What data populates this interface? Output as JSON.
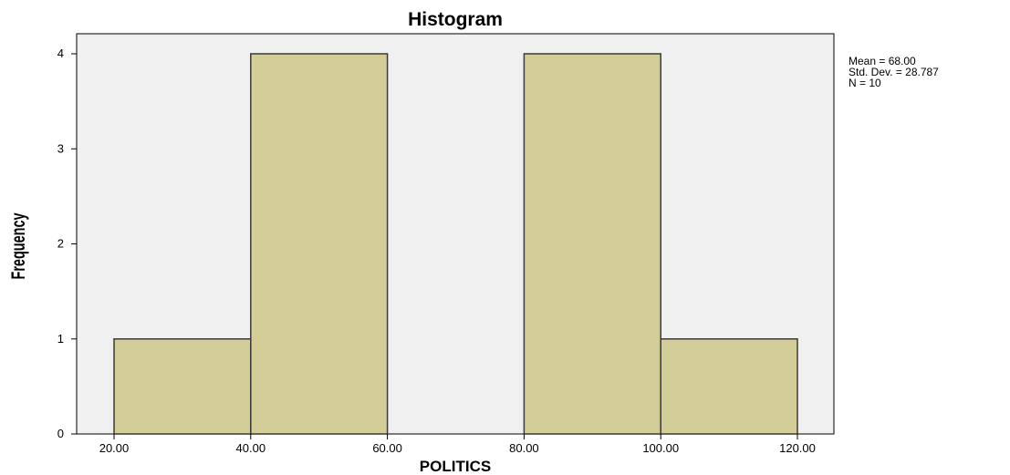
{
  "chart_data": {
    "type": "bar",
    "title": "Histogram",
    "xlabel": "POLITICS",
    "ylabel": "Frequency",
    "bins": [
      {
        "start": 20,
        "end": 40,
        "value": 1
      },
      {
        "start": 40,
        "end": 60,
        "value": 4
      },
      {
        "start": 60,
        "end": 80,
        "value": 0
      },
      {
        "start": 80,
        "end": 100,
        "value": 4
      },
      {
        "start": 100,
        "end": 120,
        "value": 1
      }
    ],
    "xlim": [
      20,
      120
    ],
    "ylim": [
      0,
      4
    ],
    "x_ticks": [
      20,
      40,
      60,
      80,
      100,
      120
    ],
    "x_tick_labels": [
      "20.00",
      "40.00",
      "60.00",
      "80.00",
      "100.00",
      "120.00"
    ],
    "y_ticks": [
      0,
      1,
      2,
      3,
      4
    ],
    "y_tick_labels": [
      "0",
      "1",
      "2",
      "3",
      "4"
    ],
    "grid": false,
    "stats": {
      "mean": "Mean = 68.00",
      "std_dev": "Std. Dev. = 28.787",
      "n": "N = 10"
    },
    "colors": {
      "plot_background": "#f0f0f0",
      "bar_fill": "#d3cd98",
      "bar_stroke": "#3a3a3a",
      "axis": "#000000"
    }
  }
}
